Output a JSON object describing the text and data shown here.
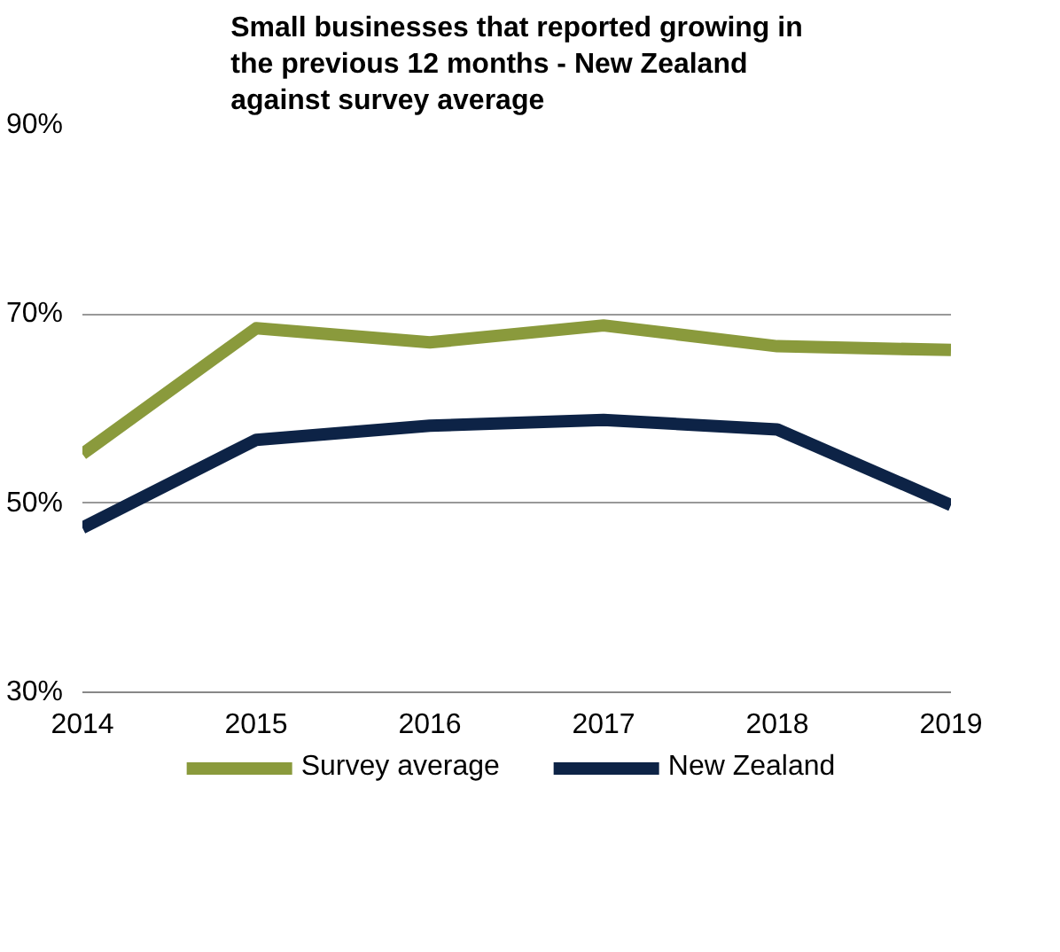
{
  "chart_data": {
    "type": "line",
    "title": "Small businesses that reported growing in the previous 12 months - New Zealand against survey average",
    "x": [
      2014,
      2015,
      2016,
      2017,
      2018,
      2019
    ],
    "series": [
      {
        "name": "Survey average",
        "color": "#8a9a3c",
        "values": [
          55.2,
          68.5,
          67.0,
          68.8,
          66.6,
          66.2
        ]
      },
      {
        "name": "New Zealand",
        "color": "#0d2346",
        "values": [
          47.4,
          56.7,
          58.2,
          58.8,
          57.8,
          49.8
        ]
      }
    ],
    "xlim": [
      2014,
      2019
    ],
    "xticks": [
      2014,
      2015,
      2016,
      2017,
      2018,
      2019
    ],
    "ylim": [
      30,
      90
    ],
    "yticks": [
      {
        "value": 30,
        "label": "30%"
      },
      {
        "value": 50,
        "label": "50%"
      },
      {
        "value": 70,
        "label": "70%"
      },
      {
        "value": 90,
        "label": "90%"
      }
    ],
    "grid": "y",
    "legend": "bottom",
    "marker": "none",
    "line_style": "solid"
  }
}
